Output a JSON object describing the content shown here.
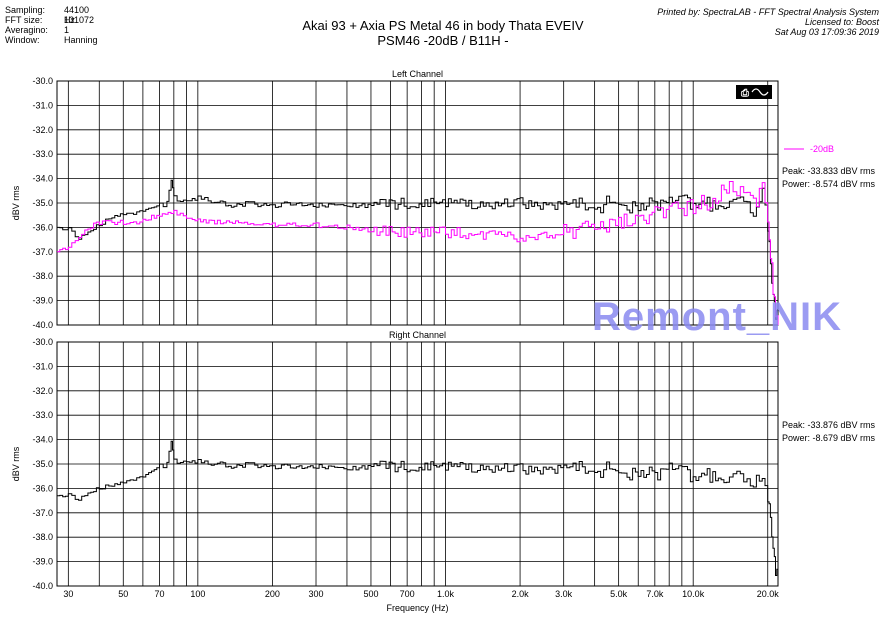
{
  "header": {
    "fields": [
      {
        "key": "Sampling:",
        "value": "44100 Hz"
      },
      {
        "key": "FFT size:",
        "value": "131072"
      },
      {
        "key": "Averagino:",
        "value": "1"
      },
      {
        "key": "Window:",
        "value": "Hanning"
      }
    ],
    "title_line1": "Akai 93 + Axia PS Metal 46 in body Thata EVEIV",
    "title_line2": "PSM46  -20dB  / B11H -",
    "printed_by": "Printed by: SpectraLAB - FFT Spectral Analysis System",
    "licensed_to": "Licensed to: Boost",
    "date": "Sat Aug 03 17:09:36 2019"
  },
  "watermark": "Remont_NIK",
  "colors": {
    "black_trace": "#000000",
    "magenta_trace": "#ff00ff",
    "grid": "#000000",
    "watermark": "#8a8af0"
  },
  "chart_data": [
    {
      "type": "line",
      "title": "Left Channel",
      "xlabel": "Frequency (Hz)",
      "ylabel": "dBV rms",
      "x_scale": "log",
      "xlim": [
        27,
        22000
      ],
      "ylim": [
        -40.0,
        -30.0
      ],
      "yticks": [
        "-30.0",
        "-31.0",
        "-32.0",
        "-33.0",
        "-34.0",
        "-35.0",
        "-36.0",
        "-37.0",
        "-38.0",
        "-39.0",
        "-40.0"
      ],
      "legend": {
        "label": "-20dB",
        "color": "#ff00ff",
        "placement": "right"
      },
      "stats": [
        "Peak: -33.833 dBV rms",
        "Power: -8.574 dBV rms"
      ],
      "series": [
        {
          "color": "#000000",
          "x": [
            27,
            30,
            33,
            36,
            40,
            45,
            50,
            55,
            60,
            65,
            70,
            75,
            78,
            80,
            85,
            90,
            100,
            110,
            120,
            140,
            160,
            180,
            200,
            250,
            300,
            400,
            500,
            700,
            1000,
            1500,
            2000,
            3000,
            4000,
            5000,
            6000,
            7000,
            8000,
            9000,
            10000,
            12000,
            14000,
            15000,
            16000,
            17000,
            18000,
            19000,
            20000,
            20500,
            21000,
            21500,
            22000
          ],
          "y": [
            -35.9,
            -36.1,
            -36.4,
            -36.2,
            -35.9,
            -35.6,
            -35.5,
            -35.4,
            -35.3,
            -35.2,
            -35.1,
            -35.0,
            -34.0,
            -34.8,
            -35.0,
            -34.9,
            -34.8,
            -34.9,
            -35.0,
            -35.1,
            -35.0,
            -35.1,
            -35.1,
            -35.0,
            -35.1,
            -35.1,
            -35.1,
            -35.0,
            -35.0,
            -35.1,
            -35.0,
            -35.1,
            -35.1,
            -35.0,
            -35.1,
            -35.0,
            -35.1,
            -35.0,
            -35.0,
            -35.1,
            -35.0,
            -35.1,
            -34.9,
            -35.2,
            -35.3,
            -34.6,
            -36.0,
            -37.5,
            -38.5,
            -39.5,
            -40.0
          ]
        },
        {
          "color": "#ff00ff",
          "name": "-20dB",
          "x": [
            27,
            30,
            33,
            36,
            40,
            45,
            50,
            55,
            60,
            65,
            70,
            80,
            90,
            100,
            120,
            150,
            200,
            300,
            400,
            500,
            700,
            1000,
            1500,
            2000,
            2500,
            3000,
            4000,
            5000,
            6000,
            7000,
            8000,
            10000,
            12000,
            13000,
            14000,
            15000,
            16000,
            17000,
            18000,
            19000,
            20000,
            20500,
            21000,
            21500,
            22000
          ],
          "y": [
            -37.0,
            -36.8,
            -36.4,
            -36.0,
            -35.8,
            -35.8,
            -35.8,
            -35.8,
            -35.7,
            -35.6,
            -35.5,
            -35.4,
            -35.6,
            -35.7,
            -35.8,
            -35.8,
            -35.9,
            -35.9,
            -36.0,
            -36.1,
            -36.2,
            -36.2,
            -36.3,
            -36.4,
            -36.3,
            -36.2,
            -36.0,
            -35.8,
            -35.6,
            -35.5,
            -35.3,
            -35.1,
            -34.9,
            -34.6,
            -34.2,
            -34.8,
            -34.4,
            -34.8,
            -35.0,
            -34.4,
            -35.6,
            -37.0,
            -38.5,
            -39.5,
            -40.0
          ]
        }
      ]
    },
    {
      "type": "line",
      "title": "Right Channel",
      "xlabel": "Frequency (Hz)",
      "ylabel": "dBV rms",
      "x_scale": "log",
      "xlim": [
        27,
        22000
      ],
      "ylim": [
        -40.0,
        -30.0
      ],
      "yticks": [
        "-30.0",
        "-31.0",
        "-32.0",
        "-33.0",
        "-34.0",
        "-35.0",
        "-36.0",
        "-37.0",
        "-38.0",
        "-39.0",
        "-40.0"
      ],
      "xticks": [
        "30",
        "50",
        "70",
        "100",
        "200",
        "300",
        "500",
        "700",
        "1.0k",
        "2.0k",
        "3.0k",
        "5.0k",
        "7.0k",
        "10.0k",
        "20.0k"
      ],
      "stats": [
        "Peak: -33.876 dBV rms",
        "Power: -8.679 dBV rms"
      ],
      "series": [
        {
          "color": "#000000",
          "x": [
            27,
            30,
            33,
            36,
            40,
            45,
            50,
            55,
            60,
            65,
            70,
            75,
            78,
            80,
            85,
            90,
            100,
            110,
            120,
            140,
            160,
            180,
            200,
            250,
            300,
            400,
            500,
            700,
            1000,
            1500,
            2000,
            3000,
            4000,
            5000,
            6000,
            7000,
            8000,
            9000,
            10000,
            12000,
            14000,
            15000,
            16000,
            17000,
            18000,
            19000,
            20000,
            20500,
            21000,
            21500,
            22000
          ],
          "y": [
            -36.2,
            -36.3,
            -36.4,
            -36.2,
            -36.0,
            -35.9,
            -35.8,
            -35.6,
            -35.5,
            -35.3,
            -35.1,
            -35.0,
            -34.0,
            -34.9,
            -35.0,
            -34.9,
            -34.9,
            -35.0,
            -35.0,
            -35.1,
            -35.0,
            -35.1,
            -35.1,
            -35.1,
            -35.1,
            -35.2,
            -35.1,
            -35.1,
            -35.1,
            -35.2,
            -35.2,
            -35.2,
            -35.2,
            -35.3,
            -35.3,
            -35.4,
            -35.3,
            -35.4,
            -35.5,
            -35.5,
            -35.6,
            -35.6,
            -35.7,
            -35.7,
            -35.6,
            -35.8,
            -36.4,
            -37.2,
            -38.2,
            -39.3,
            -40.0
          ]
        }
      ]
    }
  ],
  "xtick_values": [
    30,
    50,
    70,
    100,
    200,
    300,
    500,
    700,
    1000,
    2000,
    3000,
    5000,
    7000,
    10000,
    20000
  ],
  "grid_values": [
    30,
    40,
    50,
    60,
    70,
    80,
    90,
    100,
    200,
    300,
    400,
    500,
    600,
    700,
    800,
    900,
    1000,
    2000,
    3000,
    4000,
    5000,
    6000,
    7000,
    8000,
    9000,
    10000,
    20000
  ]
}
